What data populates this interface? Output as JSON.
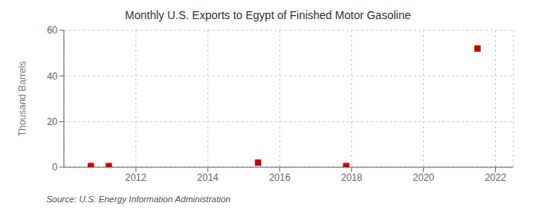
{
  "chart_data": {
    "type": "scatter",
    "title": "Monthly U.S. Exports to Egypt of Finished Motor Gasoline",
    "y_label": "Thousand Barrels",
    "annotations": [
      "Source: U.S. Energy Information Administration"
    ],
    "x": [
      2010.75,
      2011.25,
      2015.4,
      2017.85,
      2021.5
    ],
    "values": [
      0.5,
      0.5,
      2,
      0.5,
      52
    ],
    "color": "#cc0000",
    "marker": "square",
    "xlim": [
      2010.0,
      2022.5
    ],
    "xticks": [
      2012,
      2014,
      2016,
      2018,
      2020,
      2022
    ],
    "ylim": [
      0,
      60
    ],
    "yticks": [
      0,
      20,
      40,
      60
    ],
    "grid": true
  }
}
